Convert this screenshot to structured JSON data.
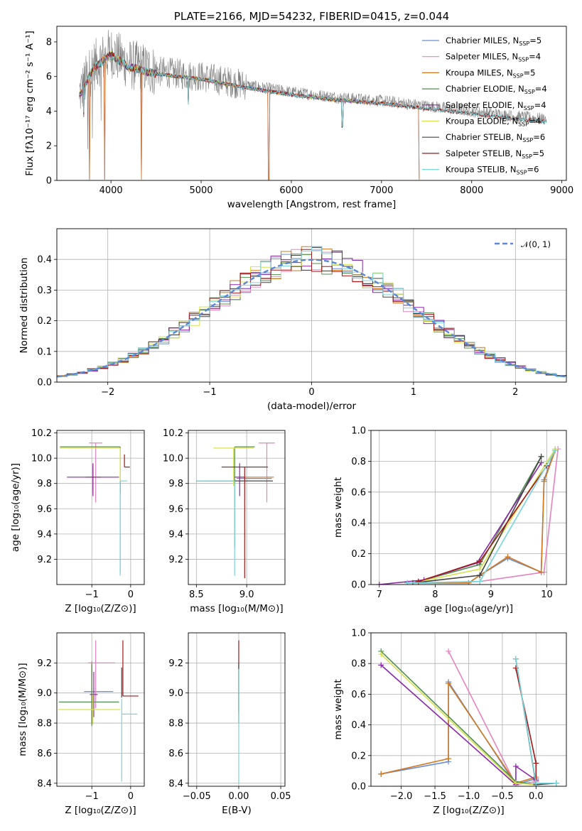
{
  "colors": {
    "Chabrier MILES": "#6a8fd2",
    "Salpeter MILES": "#e583bf",
    "Kroupa MILES": "#d2781e",
    "Chabrier ELODIE": "#4f8f4f",
    "Salpeter ELODIE": "#8b28a8",
    "Kroupa ELODIE": "#d8e050",
    "Chabrier STELIB": "#444444",
    "Salpeter STELIB": "#a01818",
    "Kroupa STELIB": "#77d5dc",
    "data": "#7f7f7f",
    "normal": "#5b87d6"
  },
  "chart_data": [
    {
      "id": "spectrum",
      "type": "line",
      "title": "PLATE=2166, MJD=54232, FIBERID=0415, z=0.044",
      "xlabel": "wavelength [Angstrom, rest frame]",
      "ylabel": "Flux [fλ10⁻¹⁷ erg cm⁻² s⁻¹ A⁻¹]",
      "xlim": [
        3400,
        9050
      ],
      "ylim": [
        0,
        8.9
      ],
      "xticks": [
        "4000",
        "5000",
        "6000",
        "7000",
        "8000",
        "9000"
      ],
      "yticks": [
        "0",
        "2",
        "4",
        "6",
        "8"
      ],
      "legend_position": "top-right",
      "legend": [
        {
          "label": "Chabrier MILES, N",
          "sub": "SSP",
          "suffix": "=5",
          "series": "Chabrier MILES"
        },
        {
          "label": "Salpeter MILES, N",
          "sub": "SSP",
          "suffix": "=4",
          "series": "Salpeter MILES"
        },
        {
          "label": "Kroupa MILES, N",
          "sub": "SSP",
          "suffix": "=5",
          "series": "Kroupa MILES"
        },
        {
          "label": "Chabrier ELODIE, N",
          "sub": "SSP",
          "suffix": "=4",
          "series": "Chabrier ELODIE"
        },
        {
          "label": "Salpeter ELODIE, N",
          "sub": "SSP",
          "suffix": "=4",
          "series": "Salpeter ELODIE"
        },
        {
          "label": "Kroupa ELODIE, N",
          "sub": "SSP",
          "suffix": "=4",
          "series": "Kroupa ELODIE"
        },
        {
          "label": "Chabrier STELIB, N",
          "sub": "SSP",
          "suffix": "=6",
          "series": "Chabrier STELIB"
        },
        {
          "label": "Salpeter STELIB, N",
          "sub": "SSP",
          "suffix": "=5",
          "series": "Salpeter STELIB"
        },
        {
          "label": "Kroupa STELIB, N",
          "sub": "SSP",
          "suffix": "=6",
          "series": "Kroupa STELIB"
        }
      ],
      "continuum": {
        "x": [
          3650,
          3800,
          4000,
          4200,
          4500,
          5000,
          5500,
          6000,
          6500,
          7000,
          7500,
          8000,
          8500,
          8800
        ],
        "y": [
          5.0,
          6.6,
          7.4,
          6.7,
          6.3,
          6.0,
          5.5,
          5.1,
          4.8,
          4.6,
          4.3,
          4.0,
          3.7,
          3.55
        ]
      },
      "model_lines": {
        "miles_end": 7420,
        "elodie_end": 6800,
        "miles_dips": [
          3760,
          3930,
          4340,
          5750,
          7420
        ],
        "stelib_dips": [
          3700,
          4860,
          6565
        ]
      }
    },
    {
      "id": "residuals",
      "type": "bar",
      "xlabel": "(data-model)/error",
      "ylabel": "Normed distribution",
      "xlim": [
        -2.5,
        2.5
      ],
      "ylim": [
        0,
        0.5
      ],
      "xticks": [
        "−2",
        "−1",
        "0",
        "1",
        "2"
      ],
      "yticks": [
        "0.0",
        "0.1",
        "0.2",
        "0.3",
        "0.4"
      ],
      "bin_width": 0.1,
      "normal_label": "𝒩(0, 1)",
      "legend_position": "top-right"
    },
    {
      "id": "age_vs_Z",
      "type": "scatter",
      "xlabel": "Z [log₁₀(Z/Z⊙)]",
      "ylabel": "age  [log₁₀(age/yr)]",
      "xlim": [
        -1.9,
        0.35
      ],
      "ylim": [
        9.0,
        10.22
      ],
      "xticks": [
        "−1",
        "0"
      ],
      "yticks": [
        "9.2",
        "9.4",
        "9.6",
        "9.8",
        "10.0",
        "10.2"
      ],
      "points": [
        {
          "series": "Chabrier MILES",
          "x": -0.97,
          "xe": [
            0.18,
            0.2
          ],
          "y": 9.85,
          "ye": [
            0.1,
            0.08
          ]
        },
        {
          "series": "Salpeter MILES",
          "x": -0.9,
          "xe": [
            0.17,
            0.17
          ],
          "y": 10.12,
          "ye": [
            0.47,
            0.0
          ]
        },
        {
          "series": "Kroupa MILES",
          "x": -0.97,
          "xe": [
            0.18,
            0.2
          ],
          "y": 9.85,
          "ye": [
            0.13,
            0.1
          ]
        },
        {
          "series": "Chabrier ELODIE",
          "x": -0.27,
          "xe": [
            1.55,
            0.0
          ],
          "y": 10.09,
          "ye": [
            1.0,
            0.0
          ]
        },
        {
          "series": "Salpeter ELODIE",
          "x": -0.97,
          "xe": [
            0.67,
            0.67
          ],
          "y": 9.85,
          "ye": [
            0.15,
            0.11
          ]
        },
        {
          "series": "Kroupa ELODIE",
          "x": -0.27,
          "xe": [
            1.55,
            0.0
          ],
          "y": 10.08,
          "ye": [
            0.3,
            0.0
          ]
        },
        {
          "series": "Chabrier STELIB",
          "x": -0.27,
          "xe": [
            0.0,
            0.0
          ],
          "y": 9.82,
          "ye": [
            0.1,
            0.0
          ]
        },
        {
          "series": "Salpeter STELIB",
          "x": -0.16,
          "xe": [
            0.0,
            0.14
          ],
          "y": 9.93,
          "ye": [
            0.0,
            0.1
          ]
        },
        {
          "series": "Kroupa STELIB",
          "x": -0.27,
          "xe": [
            0.0,
            0.18
          ],
          "y": 9.82,
          "ye": [
            0.75,
            0.0
          ]
        }
      ]
    },
    {
      "id": "age_vs_mass",
      "type": "scatter",
      "xlabel": "mass [log₁₀(M/M⊙)]",
      "xlim": [
        8.42,
        9.38
      ],
      "ylim": [
        9.0,
        10.22
      ],
      "xticks": [
        "8.5",
        "9.0"
      ],
      "yticks": [
        "9.2",
        "9.4",
        "9.6",
        "9.8",
        "10.0",
        "10.2"
      ],
      "points": [
        {
          "series": "Chabrier MILES",
          "x": 8.9,
          "xe": [
            0.0,
            0.35
          ],
          "y": 9.84,
          "ye": [
            0.0,
            0.0
          ]
        },
        {
          "series": "Salpeter MILES",
          "x": 9.2,
          "xe": [
            0.08,
            0.08
          ],
          "y": 10.12,
          "ye": [
            0.47,
            0.0
          ]
        },
        {
          "series": "Kroupa MILES",
          "x": 8.92,
          "xe": [
            0.0,
            0.35
          ],
          "y": 9.85,
          "ye": [
            0.0,
            0.0
          ]
        },
        {
          "series": "Chabrier ELODIE",
          "x": 8.88,
          "xe": [
            0.0,
            0.2
          ],
          "y": 10.09,
          "ye": [
            0.8,
            0.0
          ]
        },
        {
          "series": "Salpeter ELODIE",
          "x": 8.93,
          "xe": [
            0.05,
            0.05
          ],
          "y": 9.85,
          "ye": [
            0.15,
            0.11
          ]
        },
        {
          "series": "Kroupa ELODIE",
          "x": 8.87,
          "xe": [
            0.2,
            0.2
          ],
          "y": 10.08,
          "ye": [
            0.3,
            0.0
          ]
        },
        {
          "series": "Chabrier STELIB",
          "x": 8.88,
          "xe": [
            0.38,
            0.38
          ],
          "y": 9.82,
          "ye": [
            0.02,
            0.0
          ]
        },
        {
          "series": "Salpeter STELIB",
          "x": 8.98,
          "xe": [
            0.23,
            0.23
          ],
          "y": 9.93,
          "ye": [
            0.88,
            0.0
          ]
        },
        {
          "series": "Kroupa STELIB",
          "x": 8.88,
          "xe": [
            0.38,
            0.0
          ],
          "y": 9.82,
          "ye": [
            0.75,
            0.0
          ]
        }
      ]
    },
    {
      "id": "massweight_vs_age",
      "type": "line",
      "xlabel": "age  [log₁₀(age/yr)]",
      "ylabel": "mass weight",
      "xlim": [
        6.85,
        10.35
      ],
      "ylim": [
        0,
        1.0
      ],
      "xticks": [
        "7",
        "8",
        "9",
        "10"
      ],
      "yticks": [
        "0.0",
        "0.2",
        "0.4",
        "0.6",
        "0.8",
        "1.0"
      ],
      "series": [
        {
          "name": "Chabrier MILES",
          "x": [
            7.5,
            8.6,
            8.8,
            9.3,
            9.9,
            9.95,
            10.15
          ],
          "y": [
            0.01,
            0.01,
            0.06,
            0.17,
            0.08,
            0.68,
            0.88
          ]
        },
        {
          "name": "Salpeter MILES",
          "x": [
            7.6,
            8.8,
            9.95,
            10.2
          ],
          "y": [
            0.01,
            0.02,
            0.08,
            0.88
          ]
        },
        {
          "name": "Kroupa MILES",
          "x": [
            7.5,
            8.6,
            8.8,
            9.3,
            9.9,
            9.95,
            10.15
          ],
          "y": [
            0.01,
            0.01,
            0.06,
            0.18,
            0.08,
            0.67,
            0.87
          ]
        },
        {
          "name": "Chabrier ELODIE",
          "x": [
            7.6,
            8.8,
            9.9
          ],
          "y": [
            0.01,
            0.13,
            0.83
          ]
        },
        {
          "name": "Salpeter ELODIE",
          "x": [
            7.0,
            7.8,
            8.75,
            9.9
          ],
          "y": [
            0.0,
            0.03,
            0.14,
            0.79
          ]
        },
        {
          "name": "Kroupa ELODIE",
          "x": [
            7.6,
            8.8,
            10.15
          ],
          "y": [
            0.01,
            0.1,
            0.88
          ]
        },
        {
          "name": "Chabrier STELIB",
          "x": [
            7.6,
            8.8,
            9.9
          ],
          "y": [
            0.01,
            0.06,
            0.83
          ]
        },
        {
          "name": "Salpeter STELIB",
          "x": [
            7.7,
            8.8,
            10.0
          ],
          "y": [
            0.02,
            0.15,
            0.77
          ]
        },
        {
          "name": "Kroupa STELIB",
          "x": [
            7.5,
            8.8,
            10.15
          ],
          "y": [
            0.01,
            0.02,
            0.87
          ]
        }
      ]
    },
    {
      "id": "mass_vs_Z",
      "type": "scatter",
      "xlabel": "Z [log₁₀(Z/Z⊙)]",
      "ylabel": "mass [log₁₀(M/M⊙)]",
      "xlim": [
        -1.9,
        0.35
      ],
      "ylim": [
        8.38,
        9.4
      ],
      "xticks": [
        "−1",
        "0"
      ],
      "yticks": [
        "8.4",
        "8.6",
        "8.8",
        "9.0",
        "9.2"
      ],
      "points": [
        {
          "series": "Chabrier MILES",
          "x": -1.0,
          "xe": [
            0.2,
            0.55
          ],
          "y": 9.01,
          "ye": [
            0.2,
            0.2
          ]
        },
        {
          "series": "Salpeter MILES",
          "x": -0.9,
          "xe": [
            0.2,
            0.5
          ],
          "y": 9.2,
          "ye": [
            0.3,
            0.15
          ]
        },
        {
          "series": "Kroupa MILES",
          "x": -1.0,
          "xe": [
            0.0,
            0.0
          ],
          "y": 9.0,
          "ye": [
            0.2,
            0.2
          ]
        },
        {
          "series": "Chabrier ELODIE",
          "x": -1.0,
          "xe": [
            0.85,
            0.7
          ],
          "y": 8.94,
          "ye": [
            0.16,
            0.25
          ]
        },
        {
          "series": "Salpeter ELODIE",
          "x": -0.95,
          "xe": [
            0.1,
            0.1
          ],
          "y": 8.99,
          "ye": [
            0.15,
            0.15
          ]
        },
        {
          "series": "Kroupa ELODIE",
          "x": -0.97,
          "xe": [
            0.9,
            0.7
          ],
          "y": 8.89,
          "ye": [
            0.1,
            0.1
          ]
        },
        {
          "series": "Chabrier STELIB",
          "x": -0.23,
          "xe": [
            0.0,
            0.0
          ],
          "y": 9.17,
          "ye": [
            0.2,
            0.0
          ]
        },
        {
          "series": "Salpeter STELIB",
          "x": -0.2,
          "xe": [
            0.0,
            0.4
          ],
          "y": 8.98,
          "ye": [
            0.0,
            0.37
          ]
        },
        {
          "series": "Kroupa STELIB",
          "x": -0.23,
          "xe": [
            0.0,
            0.4
          ],
          "y": 8.86,
          "ye": [
            0.45,
            0.1
          ]
        }
      ]
    },
    {
      "id": "mass_vs_EBV",
      "type": "scatter",
      "xlabel": "E(B-V)",
      "xlim": [
        -0.06,
        0.055
      ],
      "ylim": [
        8.38,
        9.4
      ],
      "xticks": [
        "−0.05",
        "0.00",
        "0.05"
      ],
      "yticks": [
        "8.4",
        "8.6",
        "8.8",
        "9.0",
        "9.2"
      ],
      "points": [
        {
          "series": "Salpeter STELIB",
          "x": 0.0,
          "xe": [
            0,
            0
          ],
          "y": 9.22,
          "ye": [
            0.35,
            0.13
          ]
        },
        {
          "series": "Chabrier STELIB",
          "x": 0.0,
          "xe": [
            0,
            0
          ],
          "y": 9.0,
          "ye": [
            0.2,
            0.2
          ]
        },
        {
          "series": "Kroupa STELIB",
          "x": 0.0,
          "xe": [
            0,
            0
          ],
          "y": 8.86,
          "ye": [
            0.46,
            0.3
          ]
        }
      ]
    },
    {
      "id": "massweight_vs_Z",
      "type": "line",
      "xlabel": "Z [log₁₀(Z/Z⊙)]",
      "ylabel": "mass weight",
      "xlim": [
        -2.45,
        0.45
      ],
      "ylim": [
        0,
        1.0
      ],
      "xticks": [
        "−2.0",
        "−1.5",
        "−1.0",
        "−0.5",
        "0.0"
      ],
      "yticks": [
        "0.0",
        "0.2",
        "0.4",
        "0.6",
        "0.8",
        "1.0"
      ],
      "series": [
        {
          "name": "Chabrier MILES",
          "x": [
            -2.3,
            -1.3,
            -1.3,
            -0.3,
            0.0
          ],
          "y": [
            0.08,
            0.16,
            0.68,
            0.01,
            0.05
          ]
        },
        {
          "name": "Salpeter MILES",
          "x": [
            -1.3,
            -0.3,
            0.0
          ],
          "y": [
            0.88,
            0.01,
            0.03
          ]
        },
        {
          "name": "Kroupa MILES",
          "x": [
            -2.3,
            -1.3,
            -1.3,
            -0.3,
            0.0
          ],
          "y": [
            0.08,
            0.18,
            0.67,
            0.02,
            0.06
          ]
        },
        {
          "name": "Chabrier ELODIE",
          "x": [
            -2.3,
            -0.3,
            0.0
          ],
          "y": [
            0.88,
            0.03,
            0.01
          ]
        },
        {
          "name": "Salpeter ELODIE",
          "x": [
            -2.3,
            -0.3,
            -0.3,
            0.0
          ],
          "y": [
            0.79,
            0.01,
            0.13,
            0.04
          ]
        },
        {
          "name": "Kroupa ELODIE",
          "x": [
            -2.3,
            -0.3,
            0.0
          ],
          "y": [
            0.86,
            0.02,
            0.01
          ]
        },
        {
          "name": "Chabrier STELIB",
          "x": [
            -0.3,
            0.0,
            0.3
          ],
          "y": [
            0.83,
            0.01,
            0.02
          ]
        },
        {
          "name": "Salpeter STELIB",
          "x": [
            -0.3,
            0.0,
            0.0
          ],
          "y": [
            0.77,
            0.15,
            0.02
          ]
        },
        {
          "name": "Kroupa STELIB",
          "x": [
            -0.3,
            0.0,
            0.3
          ],
          "y": [
            0.83,
            0.02,
            0.02
          ]
        }
      ]
    }
  ]
}
